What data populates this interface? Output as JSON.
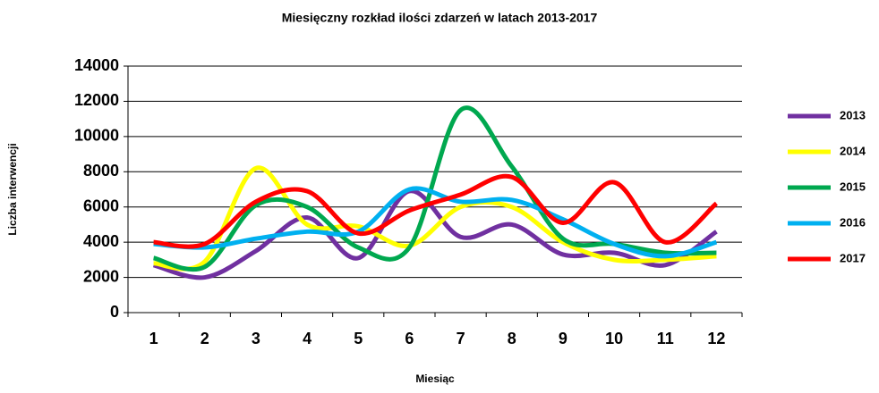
{
  "chart_data": {
    "type": "line",
    "title": "Miesięczny rozkład ilości zdarzeń w latach 2013-2017",
    "x_label": "Miesiąc",
    "y_label": "Liczba interwencji",
    "categories": [
      "1",
      "2",
      "3",
      "4",
      "5",
      "6",
      "7",
      "8",
      "9",
      "10",
      "11",
      "12"
    ],
    "series": [
      {
        "name": "2013",
        "color": "#7030a0",
        "values": [
          2700,
          2000,
          3500,
          5400,
          3100,
          6900,
          4300,
          5000,
          3300,
          3400,
          2700,
          4600
        ]
      },
      {
        "name": "2014",
        "color": "#ffff00",
        "values": [
          2800,
          2900,
          8200,
          5000,
          4900,
          3800,
          6000,
          6000,
          4000,
          3000,
          3000,
          3200
        ]
      },
      {
        "name": "2015",
        "color": "#00a84f",
        "values": [
          3100,
          2600,
          6100,
          6000,
          3700,
          3700,
          11500,
          8300,
          4200,
          3900,
          3400,
          3400
        ]
      },
      {
        "name": "2016",
        "color": "#00b0f0",
        "values": [
          3900,
          3700,
          4200,
          4600,
          4600,
          7000,
          6300,
          6400,
          5300,
          3900,
          3200,
          4000
        ]
      },
      {
        "name": "2017",
        "color": "#ff0000",
        "values": [
          4000,
          3900,
          6300,
          6900,
          4500,
          5800,
          6700,
          7700,
          5100,
          7400,
          4000,
          6200
        ]
      }
    ],
    "ylim": [
      0,
      14000
    ],
    "yticks": [
      0,
      2000,
      4000,
      6000,
      8000,
      10000,
      12000,
      14000
    ],
    "grid": true,
    "legend": "right",
    "smooth": true
  }
}
